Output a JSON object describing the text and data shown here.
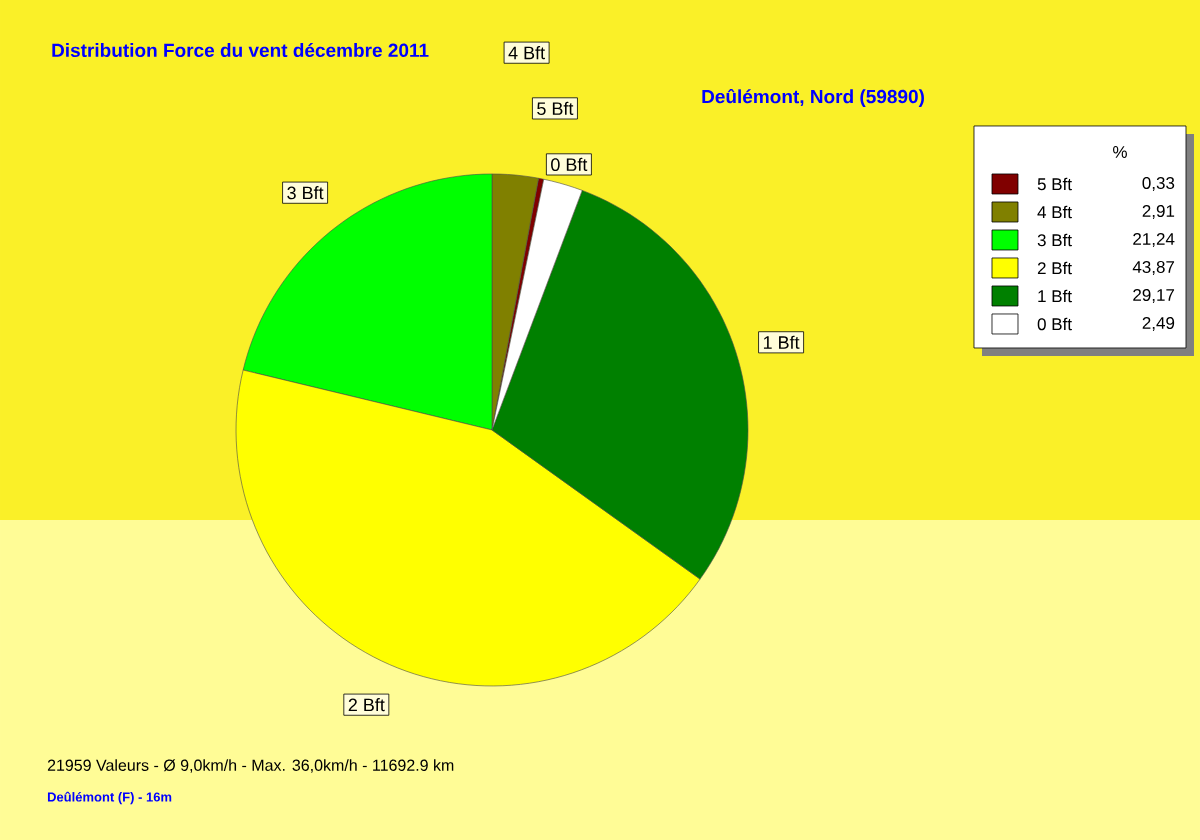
{
  "chart_data": {
    "type": "pie",
    "title": "Distribution Force du vent  décembre 2011",
    "subtitle": "Deûlémont, Nord (59890)",
    "legend_title": "%",
    "categories": [
      "5 Bft",
      "4 Bft",
      "3 Bft",
      "2 Bft",
      "1 Bft",
      "0 Bft"
    ],
    "values": [
      0.33,
      2.91,
      21.24,
      43.87,
      29.17,
      2.49
    ],
    "value_labels": [
      "0,33",
      "2,91",
      "21,24",
      "43,87",
      "29,17",
      "2,49"
    ],
    "colors": [
      "#800000",
      "#808000",
      "#00ff00",
      "#ffff00",
      "#008000",
      "#ffffff"
    ],
    "legend": "top right",
    "annotations": [
      "21959 Valeurs   -   Ø 9,0km/h  -  Max. 36,0km/h   -   11692.9 km",
      "Deûlémont (F) - 16m"
    ]
  }
}
